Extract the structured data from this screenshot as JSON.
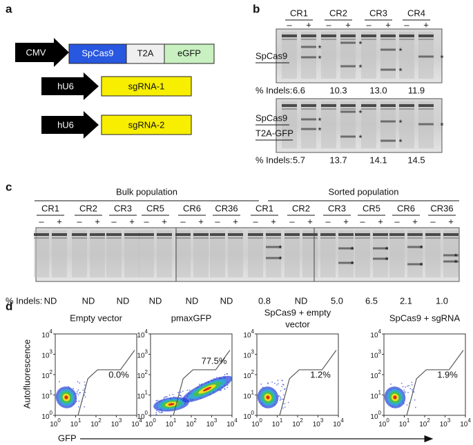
{
  "panel_a": {
    "label": "a",
    "construct": [
      "CMV",
      "SpCas9",
      "T2A",
      "eGFP"
    ],
    "guides": [
      {
        "promoter": "hU6",
        "name": "sgRNA-1"
      },
      {
        "promoter": "hU6",
        "name": "sgRNA-2"
      }
    ]
  },
  "panel_b": {
    "label": "b",
    "lanes": [
      "CR1",
      "CR2",
      "CR3",
      "CR4"
    ],
    "signs": [
      "–",
      "+"
    ],
    "asterisk": "*",
    "indels_label": "% Indels:",
    "rows": [
      {
        "name_lines": [
          "SpCas9"
        ],
        "indels": [
          "6.6",
          "10.3",
          "13.0",
          "11.9"
        ]
      },
      {
        "name_lines": [
          "SpCas9",
          "T2A-GFP"
        ],
        "indels": [
          "5.7",
          "13.7",
          "14.1",
          "14.5"
        ]
      }
    ]
  },
  "panel_c": {
    "label": "c",
    "signs": [
      "–",
      "+"
    ],
    "asterisk": "*",
    "indels_label": "% Indels:",
    "groups": [
      {
        "title": "Bulk population",
        "lanes": [
          "CR1",
          "CR2",
          "CR3",
          "CR5",
          "CR6",
          "CR36"
        ],
        "indels": [
          "ND",
          "ND",
          "ND",
          "ND",
          "ND",
          "ND"
        ]
      },
      {
        "title": "Sorted population",
        "lanes": [
          "CR1",
          "CR2",
          "CR3",
          "CR5",
          "CR6",
          "CR36"
        ],
        "indels": [
          "0.8",
          "ND",
          "5.0",
          "6.5",
          "2.1",
          "1.0"
        ]
      }
    ]
  },
  "panel_d": {
    "label": "d",
    "y_label": "Autofluorescence",
    "x_label": "GFP",
    "tick_base": "10",
    "tick_exponents": [
      "0",
      "1",
      "2",
      "3",
      "4"
    ],
    "plots": [
      {
        "title_lines": [
          "Empty vector"
        ],
        "gate_percent": "0.0%"
      },
      {
        "title_lines": [
          "pmaxGFP"
        ],
        "gate_percent": "77.5%"
      },
      {
        "title_lines": [
          "SpCas9 + empty",
          "vector"
        ],
        "gate_percent": "1.2%"
      },
      {
        "title_lines": [
          "SpCas9 + sgRNA"
        ],
        "gate_percent": "1.9%"
      }
    ]
  }
}
